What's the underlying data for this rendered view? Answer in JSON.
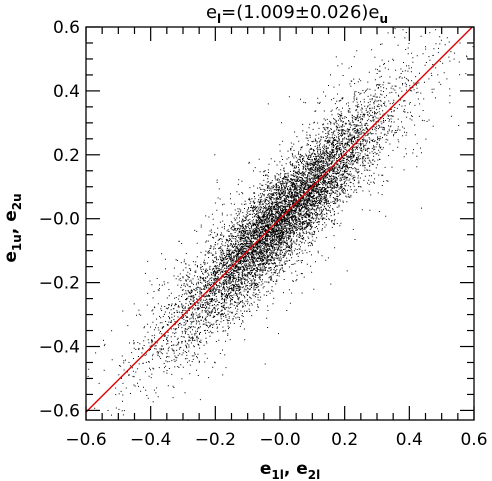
{
  "chart_data": {
    "type": "scatter",
    "title": {
      "prefix": "e",
      "prefix_sub": "l",
      "middle": "=(1.009±0.026)e",
      "suffix_sub": "u"
    },
    "xlabel": {
      "part1": "e",
      "part1_sub": "1l",
      "sep": ",  e",
      "part2_sub": "2l"
    },
    "ylabel": {
      "part1": "e",
      "part1_sub": "1u",
      "sep": ",  e",
      "part2_sub": "2u"
    },
    "xlim": [
      -0.6,
      0.6
    ],
    "ylim": [
      -0.63,
      0.6
    ],
    "x_ticks": [
      -0.6,
      -0.4,
      -0.2,
      0.0,
      0.2,
      0.4,
      0.6
    ],
    "x_tick_labels": [
      "−0.6",
      "−0.4",
      "−0.2",
      "−0.0",
      "0.2",
      "0.4",
      "0.6"
    ],
    "y_ticks": [
      -0.6,
      -0.4,
      -0.2,
      0.0,
      0.2,
      0.4,
      0.6
    ],
    "y_tick_labels": [
      "−0.6",
      "−0.4",
      "−0.2",
      "−0.0",
      "0.2",
      "0.4",
      "0.6"
    ],
    "grid": false,
    "series": [
      {
        "kind": "points",
        "color": "#000000",
        "point_count": 9000,
        "center": [
          0.0,
          0.0
        ],
        "spread_x": 0.16,
        "slope": 1.009,
        "spread_perp": 0.075
      },
      {
        "kind": "fit_line",
        "color": "#e00000",
        "slope": 1.009,
        "slope_err": 0.026,
        "intercept": 0.0
      }
    ]
  }
}
